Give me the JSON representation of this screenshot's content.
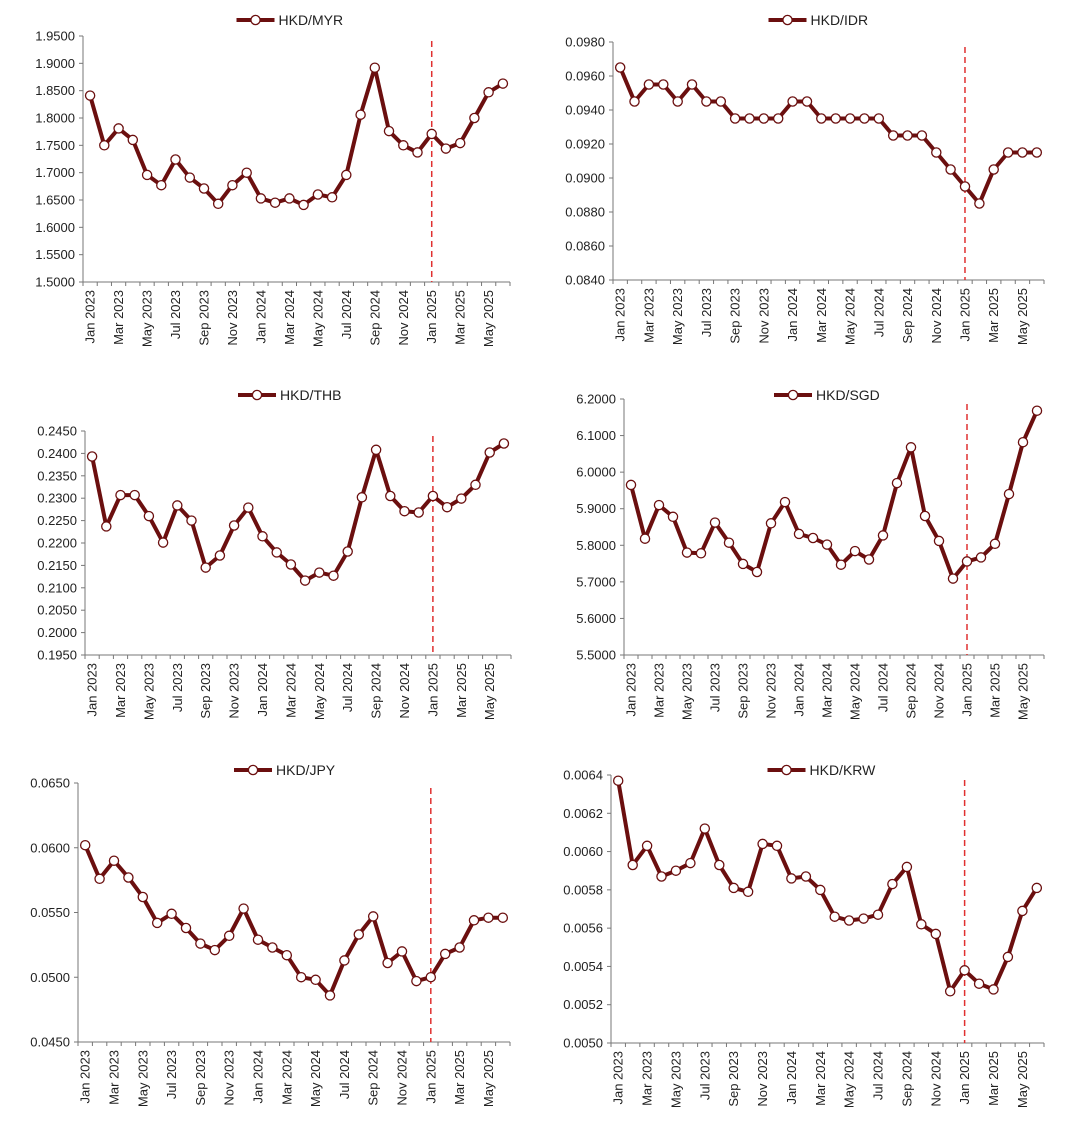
{
  "colors": {
    "series_line": "#6b0f0f",
    "marker_fill": "#ffffff",
    "axis": "#777777",
    "divider": "#e03030",
    "text": "#222222"
  },
  "x_labels": [
    "Jan 2023",
    "Mar 2023",
    "May 2023",
    "Jul 2023",
    "Sep 2023",
    "Nov 2023",
    "Jan 2024",
    "Mar 2024",
    "May 2024",
    "Jul 2024",
    "Sep 2024",
    "Nov 2024",
    "Jan 2025",
    "Mar 2025",
    "May 2025"
  ],
  "chart_data": [
    {
      "type": "line",
      "legend": "HKD/MYR",
      "series": [
        {
          "name": "HKD/MYR",
          "values": [
            1.841,
            1.75,
            1.781,
            1.76,
            1.696,
            1.677,
            1.724,
            1.691,
            1.671,
            1.643,
            1.677,
            1.7,
            1.653,
            1.645,
            1.653,
            1.641,
            1.66,
            1.655,
            1.696,
            1.806,
            1.892,
            1.776,
            1.75,
            1.737,
            1.771,
            1.744,
            1.754,
            1.8,
            1.847,
            1.863
          ]
        }
      ],
      "yticks": [
        "1.5000",
        "1.5500",
        "1.6000",
        "1.6500",
        "1.7000",
        "1.7500",
        "1.8000",
        "1.8500",
        "1.9000",
        "1.9500"
      ],
      "ylim": [
        1.5,
        1.95
      ],
      "divider_at": "Jan 2025",
      "legend_position": "top-center"
    },
    {
      "type": "line",
      "legend": "HKD/IDR",
      "series": [
        {
          "name": "HKD/IDR",
          "values": [
            0.0965,
            0.0945,
            0.0955,
            0.0955,
            0.0945,
            0.0955,
            0.0945,
            0.0945,
            0.0935,
            0.0935,
            0.0935,
            0.0935,
            0.0945,
            0.0945,
            0.0935,
            0.0935,
            0.0935,
            0.0935,
            0.0935,
            0.0925,
            0.0925,
            0.0925,
            0.0915,
            0.0905,
            0.0895,
            0.0885,
            0.0905,
            0.0915,
            0.0915,
            0.0915
          ]
        }
      ],
      "yticks": [
        "0.0840",
        "0.0860",
        "0.0880",
        "0.0900",
        "0.0920",
        "0.0940",
        "0.0960",
        "0.0980"
      ],
      "ylim": [
        0.084,
        0.098
      ],
      "divider_at": "Jan 2025",
      "legend_position": "top-center"
    },
    {
      "type": "line",
      "legend": "HKD/THB",
      "series": [
        {
          "name": "HKD/THB",
          "values": [
            0.2393,
            0.2237,
            0.2307,
            0.2307,
            0.226,
            0.2201,
            0.2284,
            0.225,
            0.2145,
            0.2172,
            0.2239,
            0.2279,
            0.2215,
            0.2179,
            0.2152,
            0.2116,
            0.2134,
            0.2127,
            0.2181,
            0.2302,
            0.2408,
            0.2305,
            0.2271,
            0.2268,
            0.2305,
            0.228,
            0.2299,
            0.233,
            0.2402,
            0.2422
          ]
        }
      ],
      "yticks": [
        "0.1950",
        "0.2000",
        "0.2050",
        "0.2100",
        "0.2150",
        "0.2200",
        "0.2250",
        "0.2300",
        "0.2350",
        "0.2400",
        "0.2450"
      ],
      "ylim": [
        0.195,
        0.245
      ],
      "divider_at": "Jan 2025",
      "legend_position": "top-center"
    },
    {
      "type": "line",
      "legend": "HKD/SGD",
      "series": [
        {
          "name": "HKD/SGD",
          "values": [
            5.965,
            5.818,
            5.91,
            5.878,
            5.78,
            5.778,
            5.862,
            5.807,
            5.749,
            5.727,
            5.86,
            5.918,
            5.831,
            5.82,
            5.802,
            5.747,
            5.784,
            5.761,
            5.827,
            5.97,
            6.068,
            5.88,
            5.812,
            5.709,
            5.756,
            5.767,
            5.804,
            5.94,
            6.082,
            6.168
          ]
        }
      ],
      "yticks": [
        "5.5000",
        "5.6000",
        "5.7000",
        "5.8000",
        "5.9000",
        "6.0000",
        "6.1000",
        "6.2000"
      ],
      "ylim": [
        5.5,
        6.2
      ],
      "divider_at": "Jan 2025",
      "legend_position": "top-center"
    },
    {
      "type": "line",
      "legend": "HKD/JPY",
      "series": [
        {
          "name": "HKD/JPY",
          "values": [
            0.0602,
            0.0576,
            0.059,
            0.0577,
            0.0562,
            0.0542,
            0.0549,
            0.0538,
            0.0526,
            0.0521,
            0.0532,
            0.0553,
            0.0529,
            0.0523,
            0.0517,
            0.05,
            0.0498,
            0.0486,
            0.0513,
            0.0533,
            0.0547,
            0.0511,
            0.052,
            0.0497,
            0.05,
            0.0518,
            0.0523,
            0.0544,
            0.0546,
            0.0546
          ]
        }
      ],
      "yticks": [
        "0.0450",
        "0.0500",
        "0.0550",
        "0.0600",
        "0.0650"
      ],
      "ylim": [
        0.045,
        0.065
      ],
      "divider_at": "Jan 2025",
      "legend_position": "top-center"
    },
    {
      "type": "line",
      "legend": "HKD/KRW",
      "series": [
        {
          "name": "HKD/KRW",
          "values": [
            0.00637,
            0.00593,
            0.00603,
            0.00587,
            0.0059,
            0.00594,
            0.00612,
            0.00593,
            0.00581,
            0.00579,
            0.00604,
            0.00603,
            0.00586,
            0.00587,
            0.0058,
            0.00566,
            0.00564,
            0.00565,
            0.00567,
            0.00583,
            0.00592,
            0.00562,
            0.00557,
            0.00527,
            0.00538,
            0.00531,
            0.00528,
            0.00545,
            0.00569,
            0.00581
          ]
        }
      ],
      "yticks": [
        "0.0050",
        "0.0052",
        "0.0054",
        "0.0056",
        "0.0058",
        "0.0060",
        "0.0062",
        "0.0064"
      ],
      "ylim": [
        0.005,
        0.0064
      ],
      "divider_at": "Jan 2025",
      "legend_position": "top-center"
    }
  ]
}
